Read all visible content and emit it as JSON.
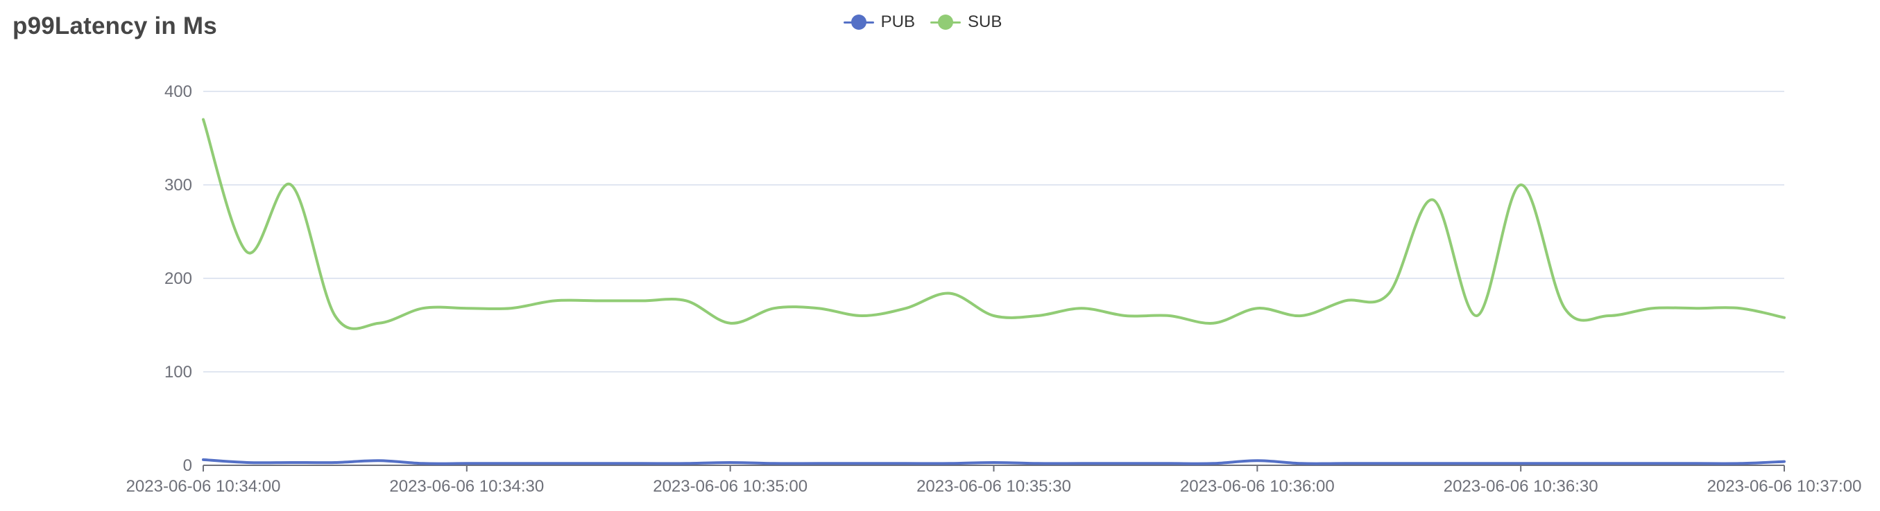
{
  "title": "p99Latency in Ms",
  "chart_data": {
    "type": "line",
    "title": "p99Latency in Ms",
    "xlabel": "",
    "ylabel": "",
    "ylim": [
      0,
      400
    ],
    "yticks": [
      0,
      100,
      200,
      300,
      400
    ],
    "xtick_labels": [
      "2023-06-06 10:34:00",
      "2023-06-06 10:34:30",
      "2023-06-06 10:35:00",
      "2023-06-06 10:35:30",
      "2023-06-06 10:36:00",
      "2023-06-06 10:36:30",
      "2023-06-06 10:37:00"
    ],
    "grid": true,
    "legend_position": "top-center",
    "x": [
      "2023-06-06 10:34:00",
      "2023-06-06 10:34:05",
      "2023-06-06 10:34:10",
      "2023-06-06 10:34:15",
      "2023-06-06 10:34:20",
      "2023-06-06 10:34:25",
      "2023-06-06 10:34:30",
      "2023-06-06 10:34:35",
      "2023-06-06 10:34:40",
      "2023-06-06 10:34:45",
      "2023-06-06 10:34:50",
      "2023-06-06 10:34:55",
      "2023-06-06 10:35:00",
      "2023-06-06 10:35:05",
      "2023-06-06 10:35:10",
      "2023-06-06 10:35:15",
      "2023-06-06 10:35:20",
      "2023-06-06 10:35:25",
      "2023-06-06 10:35:30",
      "2023-06-06 10:35:35",
      "2023-06-06 10:35:40",
      "2023-06-06 10:35:45",
      "2023-06-06 10:35:50",
      "2023-06-06 10:35:55",
      "2023-06-06 10:36:00",
      "2023-06-06 10:36:05",
      "2023-06-06 10:36:10",
      "2023-06-06 10:36:15",
      "2023-06-06 10:36:20",
      "2023-06-06 10:36:25",
      "2023-06-06 10:36:30",
      "2023-06-06 10:36:35",
      "2023-06-06 10:36:40",
      "2023-06-06 10:36:45",
      "2023-06-06 10:36:50",
      "2023-06-06 10:36:55",
      "2023-06-06 10:37:00"
    ],
    "series": [
      {
        "name": "PUB",
        "color": "#5470c6",
        "values": [
          6,
          3,
          3,
          3,
          5,
          2,
          2,
          2,
          2,
          2,
          2,
          2,
          3,
          2,
          2,
          2,
          2,
          2,
          3,
          2,
          2,
          2,
          2,
          2,
          5,
          2,
          2,
          2,
          2,
          2,
          2,
          2,
          2,
          2,
          2,
          2,
          4
        ]
      },
      {
        "name": "SUB",
        "color": "#91cc75",
        "values": [
          370,
          228,
          300,
          160,
          152,
          168,
          168,
          168,
          176,
          176,
          176,
          176,
          152,
          168,
          168,
          160,
          168,
          184,
          160,
          160,
          168,
          160,
          160,
          152,
          168,
          160,
          176,
          184,
          284,
          160,
          300,
          168,
          160,
          168,
          168,
          168,
          158
        ]
      }
    ]
  }
}
